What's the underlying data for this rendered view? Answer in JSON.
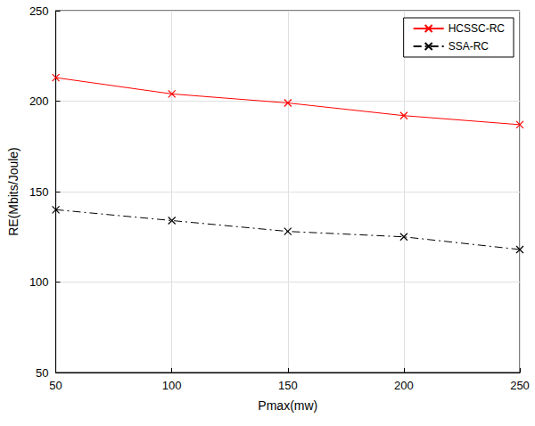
{
  "chart_data": {
    "type": "line",
    "x_label": "Pmax(mw)",
    "y_label": "RE(Mbits/Joule)",
    "x": [
      50,
      100,
      150,
      200,
      250
    ],
    "series": [
      {
        "name": "HCSSC-RC",
        "color": "#ff0000",
        "marker": "x",
        "line_style": "solid",
        "values": [
          213,
          204,
          199,
          192,
          187
        ]
      },
      {
        "name": "SSA-RC",
        "color": "#000000",
        "marker": "x",
        "line_style": "dashdot",
        "values": [
          140,
          134,
          128,
          125,
          118
        ]
      }
    ],
    "xlim": [
      50,
      250
    ],
    "xticks": [
      50,
      100,
      150,
      200,
      250
    ],
    "ylim": [
      50,
      250
    ],
    "yticks": [
      50,
      100,
      150,
      200,
      250
    ],
    "grid": true,
    "legend": "northeast"
  }
}
